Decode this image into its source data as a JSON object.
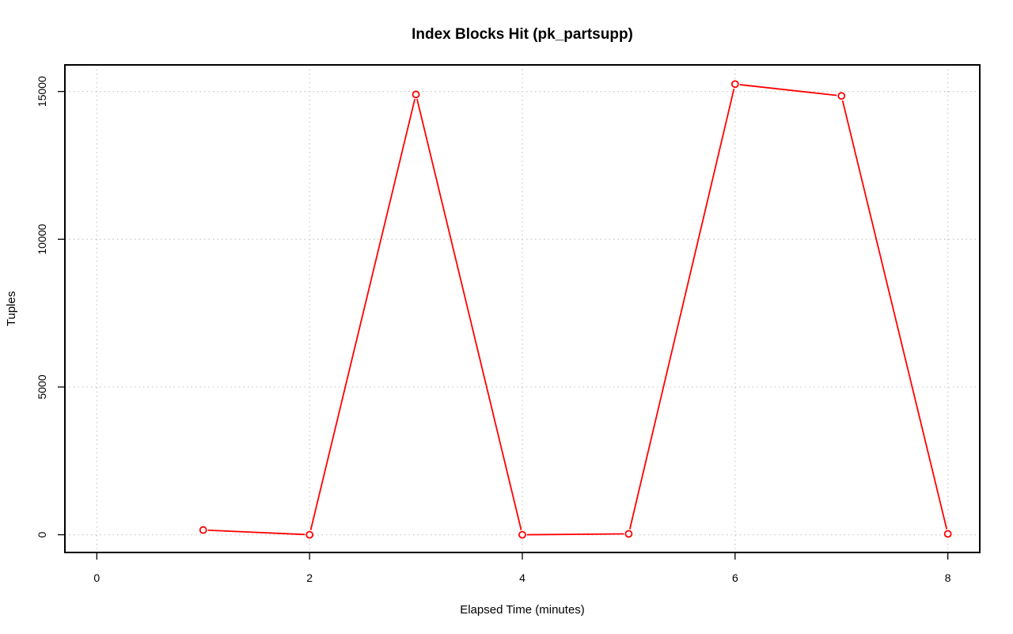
{
  "chart_data": {
    "type": "line",
    "title": "Index Blocks Hit (pk_partsupp)",
    "xlabel": "Elapsed Time (minutes)",
    "ylabel": "Tuples",
    "x_ticks": [
      "0",
      "2",
      "4",
      "6",
      "8"
    ],
    "y_ticks": [
      "0",
      "5000",
      "10000",
      "15000"
    ],
    "xlim": [
      -0.3,
      8.3
    ],
    "ylim": [
      -600,
      15900
    ],
    "grid": true,
    "series": [
      {
        "color": "#ff0000",
        "x": [
          1,
          2,
          3,
          4,
          5,
          6,
          7,
          8
        ],
        "y": [
          160,
          0,
          14900,
          0,
          30,
          15250,
          14850,
          30
        ]
      }
    ]
  }
}
